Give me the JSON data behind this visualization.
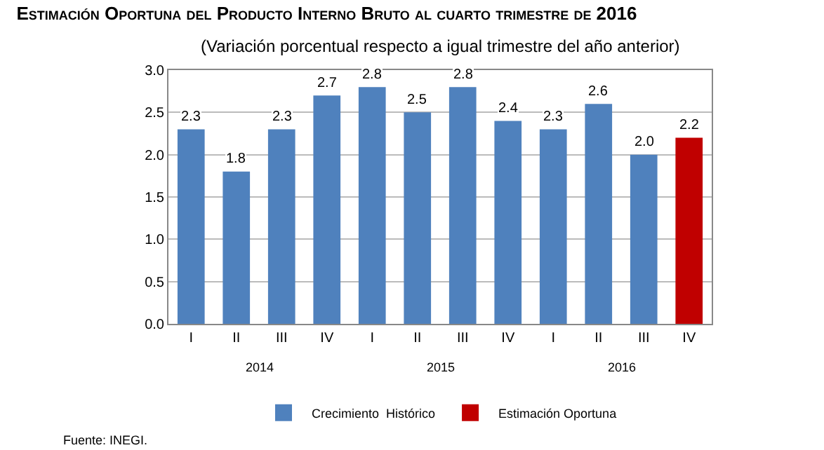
{
  "chart_data": {
    "type": "bar",
    "title": "Estimación Oportuna del Producto Interno Bruto al cuarto trimestre de 2016",
    "subtitle": "(Variación porcentual respecto a igual trimestre del año anterior)",
    "categories": [
      "I",
      "II",
      "III",
      "IV",
      "I",
      "II",
      "III",
      "IV",
      "I",
      "II",
      "III",
      "IV"
    ],
    "series": [
      {
        "name": "Crecimiento  Histórico",
        "color": "#4f81bd",
        "values": [
          2.3,
          1.8,
          2.3,
          2.7,
          2.8,
          2.5,
          2.8,
          2.4,
          2.3,
          2.6,
          2.0,
          null
        ],
        "value_labels": [
          "2.3",
          "1.8",
          "2.3",
          "2.7",
          "2.8",
          "2.5",
          "2.8",
          "2.4",
          "2.3",
          "2.6",
          "2.0",
          null
        ]
      },
      {
        "name": "Estimación Oportuna",
        "color": "#c00000",
        "values": [
          null,
          null,
          null,
          null,
          null,
          null,
          null,
          null,
          null,
          null,
          null,
          2.2
        ],
        "value_labels": [
          null,
          null,
          null,
          null,
          null,
          null,
          null,
          null,
          null,
          null,
          null,
          "2.2"
        ]
      }
    ],
    "ylim": [
      0,
      3
    ],
    "yticks": [
      {
        "value": 0,
        "label": "0.0"
      },
      {
        "value": 0.5,
        "label": "0.5"
      },
      {
        "value": 1,
        "label": "1.0"
      },
      {
        "value": 1.5,
        "label": "1.5"
      },
      {
        "value": 2,
        "label": "2.0"
      },
      {
        "value": 2.5,
        "label": "2.5"
      },
      {
        "value": 3,
        "label": "3.0"
      }
    ],
    "grid": "y",
    "legend": "bottom",
    "annotations": [
      "2014",
      "2015",
      "2016",
      "Fuente: INEGI."
    ]
  }
}
